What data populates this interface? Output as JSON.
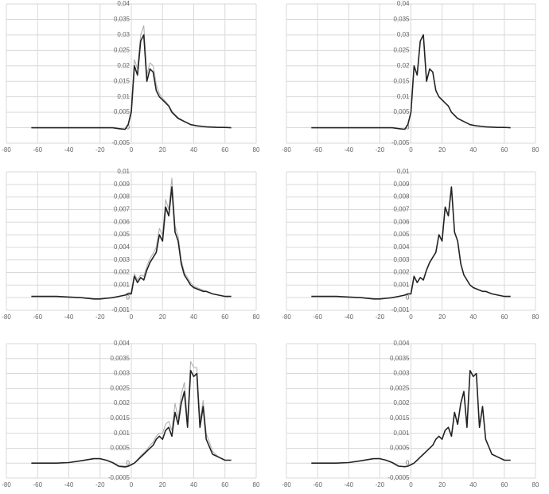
{
  "chart_data": [
    {
      "type": "line",
      "xlim": [
        -80,
        80
      ],
      "xticks": [
        -80,
        -60,
        -40,
        -20,
        0,
        20,
        40,
        60,
        80
      ],
      "ylim": [
        -0.005,
        0.04
      ],
      "yticks": [
        {
          "value": -0.005,
          "label": "-0,005"
        },
        0,
        {
          "value": 0.005,
          "label": "0,005"
        },
        {
          "value": 0.01,
          "label": "0,01"
        },
        {
          "value": 0.015,
          "label": "0,015"
        },
        {
          "value": 0.02,
          "label": "0,02"
        },
        {
          "value": 0.025,
          "label": "0,025"
        },
        {
          "value": 0.03,
          "label": "0,03"
        },
        {
          "value": 0.035,
          "label": "0,035"
        },
        {
          "value": 0.04,
          "label": "0,04"
        }
      ],
      "grid": true,
      "x": [
        -64,
        -56,
        -48,
        -40,
        -32,
        -24,
        -20,
        -16,
        -12,
        -8,
        -4,
        -2,
        0,
        2,
        4,
        6,
        8,
        10,
        12,
        14,
        16,
        18,
        20,
        22,
        24,
        26,
        28,
        30,
        32,
        34,
        36,
        38,
        40,
        42,
        44,
        46,
        48,
        52,
        56,
        60,
        64
      ],
      "series": [
        {
          "color": "#b0b0b0",
          "values": [
            0,
            0,
            0,
            0,
            0,
            0,
            0,
            0,
            0,
            -0.0004,
            -0.0006,
            0.0012,
            0.006,
            0.022,
            0.019,
            0.03,
            0.033,
            0.017,
            0.021,
            0.02,
            0.014,
            0.011,
            0.0095,
            0.0085,
            0.0072,
            0.0055,
            0.0042,
            0.0033,
            0.0027,
            0.0021,
            0.0016,
            0.0011,
            0.0009,
            0.0007,
            0.0005,
            0.0004,
            0.0003,
            0.0002,
            0.0001,
            0.0001,
            0
          ]
        },
        {
          "color": "#222222",
          "values": [
            0,
            0,
            0,
            0,
            0,
            0,
            0,
            0,
            0,
            -0.0003,
            -0.0005,
            0.001,
            0.005,
            0.02,
            0.017,
            0.028,
            0.03,
            0.015,
            0.019,
            0.018,
            0.012,
            0.01,
            0.009,
            0.008,
            0.007,
            0.005,
            0.004,
            0.003,
            0.0025,
            0.002,
            0.0015,
            0.001,
            0.0008,
            0.0006,
            0.0005,
            0.0004,
            0.0003,
            0.0002,
            0.0001,
            0.0001,
            0
          ]
        }
      ]
    },
    {
      "type": "line",
      "xlim": [
        -80,
        80
      ],
      "xticks": [
        -80,
        -60,
        -40,
        -20,
        0,
        20,
        40,
        60,
        80
      ],
      "ylim": [
        -0.005,
        0.04
      ],
      "yticks": [
        {
          "value": -0.005,
          "label": "-0,005"
        },
        0,
        {
          "value": 0.005,
          "label": "0,005"
        },
        {
          "value": 0.01,
          "label": "0,01"
        },
        {
          "value": 0.015,
          "label": "0,015"
        },
        {
          "value": 0.02,
          "label": "0,02"
        },
        {
          "value": 0.025,
          "label": "0,025"
        },
        {
          "value": 0.03,
          "label": "0,03"
        },
        {
          "value": 0.035,
          "label": "0,035"
        },
        {
          "value": 0.04,
          "label": "0,04"
        }
      ],
      "grid": true,
      "x": [
        -64,
        -56,
        -48,
        -40,
        -32,
        -24,
        -20,
        -16,
        -12,
        -8,
        -4,
        -2,
        0,
        2,
        4,
        6,
        8,
        10,
        12,
        14,
        16,
        18,
        20,
        22,
        24,
        26,
        28,
        30,
        32,
        34,
        36,
        38,
        40,
        42,
        44,
        46,
        48,
        52,
        56,
        60,
        64
      ],
      "series": [
        {
          "color": "#222222",
          "values": [
            0,
            0,
            0,
            0,
            0,
            0,
            0,
            0,
            0,
            -0.0003,
            -0.0005,
            0.001,
            0.005,
            0.02,
            0.017,
            0.028,
            0.03,
            0.015,
            0.019,
            0.018,
            0.012,
            0.01,
            0.009,
            0.008,
            0.007,
            0.005,
            0.004,
            0.003,
            0.0025,
            0.002,
            0.0015,
            0.001,
            0.0008,
            0.0006,
            0.0005,
            0.0004,
            0.0003,
            0.0002,
            0.0001,
            0.0001,
            0
          ]
        }
      ]
    },
    {
      "type": "line",
      "xlim": [
        -80,
        80
      ],
      "xticks": [
        -80,
        -60,
        -40,
        -20,
        0,
        20,
        40,
        60,
        80
      ],
      "ylim": [
        -0.001,
        0.01
      ],
      "yticks": [
        {
          "value": -0.001,
          "label": "-0,001"
        },
        0,
        {
          "value": 0.001,
          "label": "0,001"
        },
        {
          "value": 0.002,
          "label": "0,002"
        },
        {
          "value": 0.003,
          "label": "0,003"
        },
        {
          "value": 0.004,
          "label": "0,004"
        },
        {
          "value": 0.005,
          "label": "0,005"
        },
        {
          "value": 0.006,
          "label": "0,006"
        },
        {
          "value": 0.007,
          "label": "0,007"
        },
        {
          "value": 0.008,
          "label": "0,008"
        },
        {
          "value": 0.009,
          "label": "0,009"
        },
        {
          "value": 0.01,
          "label": "0,01"
        }
      ],
      "grid": true,
      "x": [
        -64,
        -56,
        -48,
        -40,
        -32,
        -24,
        -20,
        -16,
        -12,
        -8,
        -4,
        -2,
        0,
        2,
        4,
        6,
        8,
        10,
        12,
        14,
        16,
        18,
        20,
        22,
        24,
        26,
        28,
        30,
        32,
        34,
        36,
        38,
        40,
        42,
        44,
        46,
        48,
        52,
        56,
        60,
        64
      ],
      "series": [
        {
          "color": "#b0b0b0",
          "values": [
            0.0001,
            0.0001,
            0.0001,
            5e-05,
            0,
            -0.00012,
            -0.00012,
            -6e-05,
            0,
            0.0001,
            0.0002,
            0.0004,
            0.0004,
            0.0019,
            0.0014,
            0.0018,
            0.0017,
            0.0025,
            0.0031,
            0.0035,
            0.004,
            0.0055,
            0.005,
            0.0078,
            0.007,
            0.0095,
            0.0057,
            0.0049,
            0.003,
            0.002,
            0.0016,
            0.0012,
            0.0009,
            0.0008,
            0.0007,
            0.0006,
            0.0005,
            0.0003,
            0.0002,
            0.0001,
            0.0001
          ]
        },
        {
          "color": "#222222",
          "values": [
            0.0001,
            0.0001,
            0.0001,
            5e-05,
            0,
            -0.0001,
            -0.0001,
            -5e-05,
            0,
            0.0001,
            0.0002,
            0.0003,
            0.0003,
            0.0017,
            0.0012,
            0.0016,
            0.0014,
            0.0022,
            0.0028,
            0.0032,
            0.0036,
            0.005,
            0.0045,
            0.0072,
            0.0065,
            0.0088,
            0.0052,
            0.0045,
            0.0027,
            0.0018,
            0.0014,
            0.001,
            0.0008,
            0.0007,
            0.0006,
            0.0005,
            0.0005,
            0.0003,
            0.0002,
            0.0001,
            0.0001
          ]
        }
      ]
    },
    {
      "type": "line",
      "xlim": [
        -80,
        80
      ],
      "xticks": [
        -80,
        -60,
        -40,
        -20,
        0,
        20,
        40,
        60,
        80
      ],
      "ylim": [
        -0.001,
        0.01
      ],
      "yticks": [
        {
          "value": -0.001,
          "label": "-0,001"
        },
        0,
        {
          "value": 0.001,
          "label": "0,001"
        },
        {
          "value": 0.002,
          "label": "0,002"
        },
        {
          "value": 0.003,
          "label": "0,003"
        },
        {
          "value": 0.004,
          "label": "0,004"
        },
        {
          "value": 0.005,
          "label": "0,005"
        },
        {
          "value": 0.006,
          "label": "0,006"
        },
        {
          "value": 0.007,
          "label": "0,007"
        },
        {
          "value": 0.008,
          "label": "0,008"
        },
        {
          "value": 0.009,
          "label": "0,009"
        },
        {
          "value": 0.01,
          "label": "0,01"
        }
      ],
      "grid": true,
      "x": [
        -64,
        -56,
        -48,
        -40,
        -32,
        -24,
        -20,
        -16,
        -12,
        -8,
        -4,
        -2,
        0,
        2,
        4,
        6,
        8,
        10,
        12,
        14,
        16,
        18,
        20,
        22,
        24,
        26,
        28,
        30,
        32,
        34,
        36,
        38,
        40,
        42,
        44,
        46,
        48,
        52,
        56,
        60,
        64
      ],
      "series": [
        {
          "color": "#222222",
          "values": [
            0.0001,
            0.0001,
            0.0001,
            5e-05,
            0,
            -0.0001,
            -0.0001,
            -5e-05,
            0,
            0.0001,
            0.0002,
            0.0003,
            0.0003,
            0.0017,
            0.0012,
            0.0016,
            0.0014,
            0.0022,
            0.0028,
            0.0032,
            0.0036,
            0.005,
            0.0045,
            0.0072,
            0.0065,
            0.0088,
            0.0052,
            0.0045,
            0.0027,
            0.0018,
            0.0014,
            0.001,
            0.0008,
            0.0007,
            0.0006,
            0.0005,
            0.0005,
            0.0003,
            0.0002,
            0.0001,
            0.0001
          ]
        }
      ]
    },
    {
      "type": "line",
      "xlim": [
        -80,
        80
      ],
      "xticks": [
        -80,
        -60,
        -40,
        -20,
        0,
        20,
        40,
        60,
        80
      ],
      "ylim": [
        -0.0005,
        0.004
      ],
      "yticks": [
        {
          "value": -0.0005,
          "label": "-0,0005"
        },
        0,
        {
          "value": 0.0005,
          "label": "0,0005"
        },
        {
          "value": 0.001,
          "label": "0,001"
        },
        {
          "value": 0.0015,
          "label": "0,0015"
        },
        {
          "value": 0.002,
          "label": "0,002"
        },
        {
          "value": 0.0025,
          "label": "0,0025"
        },
        {
          "value": 0.003,
          "label": "0,003"
        },
        {
          "value": 0.0035,
          "label": "0,0035"
        },
        {
          "value": 0.004,
          "label": "0,004"
        }
      ],
      "grid": true,
      "x": [
        -64,
        -56,
        -48,
        -40,
        -32,
        -24,
        -20,
        -16,
        -12,
        -8,
        -4,
        -2,
        0,
        2,
        4,
        6,
        8,
        10,
        12,
        14,
        16,
        18,
        20,
        22,
        24,
        26,
        28,
        30,
        32,
        34,
        36,
        38,
        40,
        42,
        44,
        46,
        48,
        52,
        56,
        60,
        64
      ],
      "series": [
        {
          "color": "#b0b0b0",
          "values": [
            0,
            0,
            0,
            2e-05,
            8e-05,
            0.00015,
            0.00015,
            0.0001,
            2e-05,
            -0.00012,
            -0.00015,
            -0.00012,
            -6e-05,
            0,
            0.00012,
            0.00025,
            0.00035,
            0.00045,
            0.0006,
            0.0007,
            0.0009,
            0.001,
            0.001,
            0.0013,
            0.0014,
            0.0011,
            0.002,
            0.0015,
            0.0023,
            0.0027,
            0.0014,
            0.0034,
            0.0032,
            0.0032,
            0.0014,
            0.0021,
            0.001,
            0.0004,
            0.0002,
            0.0001,
            0.0001
          ]
        },
        {
          "color": "#222222",
          "values": [
            0,
            0,
            0,
            2e-05,
            8e-05,
            0.00015,
            0.00015,
            0.0001,
            2e-05,
            -0.0001,
            -0.00012,
            -0.0001,
            -5e-05,
            0,
            0.0001,
            0.0002,
            0.0003,
            0.0004,
            0.0005,
            0.0006,
            0.0008,
            0.0009,
            0.0008,
            0.0011,
            0.0012,
            0.0009,
            0.0017,
            0.0013,
            0.002,
            0.0024,
            0.0012,
            0.0031,
            0.0029,
            0.003,
            0.0012,
            0.0019,
            0.0008,
            0.0003,
            0.0002,
            0.0001,
            0.0001
          ]
        }
      ]
    },
    {
      "type": "line",
      "xlim": [
        -80,
        80
      ],
      "xticks": [
        -80,
        -60,
        -40,
        -20,
        0,
        20,
        40,
        60,
        80
      ],
      "ylim": [
        -0.0005,
        0.004
      ],
      "yticks": [
        {
          "value": -0.0005,
          "label": "-0,0005"
        },
        0,
        {
          "value": 0.0005,
          "label": "0,0005"
        },
        {
          "value": 0.001,
          "label": "0,001"
        },
        {
          "value": 0.0015,
          "label": "0,0015"
        },
        {
          "value": 0.002,
          "label": "0,002"
        },
        {
          "value": 0.0025,
          "label": "0,0025"
        },
        {
          "value": 0.003,
          "label": "0,003"
        },
        {
          "value": 0.0035,
          "label": "0,0035"
        },
        {
          "value": 0.004,
          "label": "0,004"
        }
      ],
      "grid": true,
      "x": [
        -64,
        -56,
        -48,
        -40,
        -32,
        -24,
        -20,
        -16,
        -12,
        -8,
        -4,
        -2,
        0,
        2,
        4,
        6,
        8,
        10,
        12,
        14,
        16,
        18,
        20,
        22,
        24,
        26,
        28,
        30,
        32,
        34,
        36,
        38,
        40,
        42,
        44,
        46,
        48,
        52,
        56,
        60,
        64
      ],
      "series": [
        {
          "color": "#222222",
          "values": [
            0,
            0,
            0,
            2e-05,
            8e-05,
            0.00015,
            0.00015,
            0.0001,
            2e-05,
            -0.0001,
            -0.00012,
            -0.0001,
            -5e-05,
            0,
            0.0001,
            0.0002,
            0.0003,
            0.0004,
            0.0005,
            0.0006,
            0.0008,
            0.0009,
            0.0008,
            0.0011,
            0.0012,
            0.0009,
            0.0017,
            0.0013,
            0.002,
            0.0024,
            0.0012,
            0.0031,
            0.0029,
            0.003,
            0.0012,
            0.0019,
            0.0008,
            0.0003,
            0.0002,
            0.0001,
            0.0001
          ]
        }
      ]
    }
  ]
}
